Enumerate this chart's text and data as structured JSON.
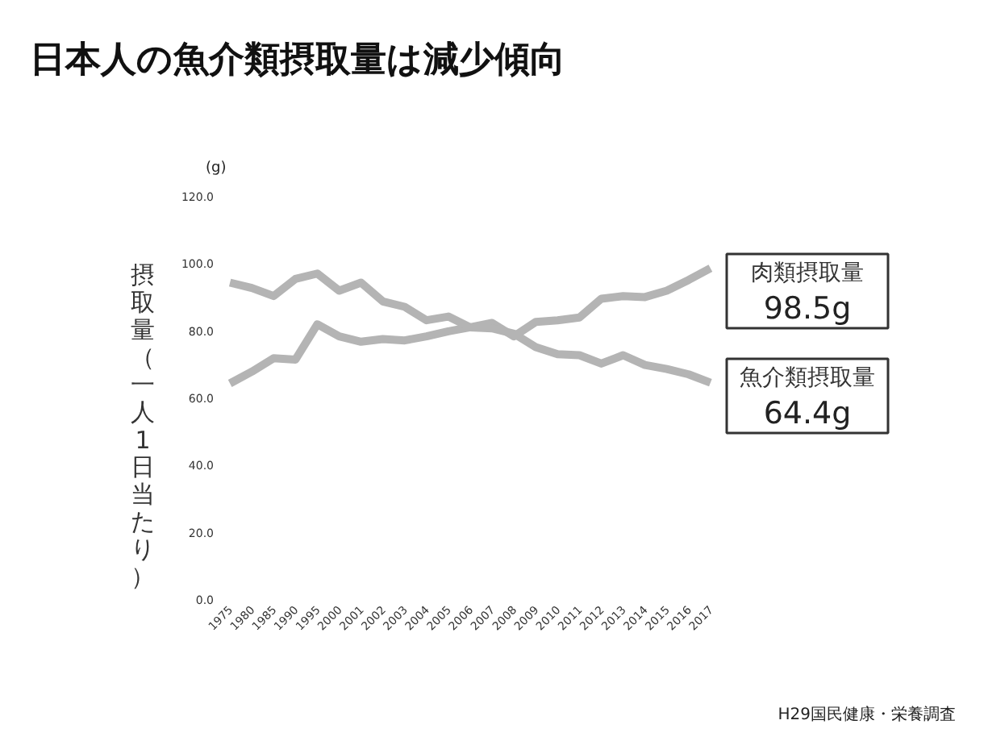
{
  "chart_data": {
    "type": "line",
    "title": "日本人の魚介類摂取量は減少傾向",
    "ylabel": "摂取量（一人1日当たり）",
    "annotations": [
      "(g)",
      "H29国民健康・栄養調査"
    ],
    "categories": [
      "1975",
      "1980",
      "1985",
      "1990",
      "1995",
      "2000",
      "2001",
      "2002",
      "2003",
      "2004",
      "2005",
      "2006",
      "2007",
      "2008",
      "2009",
      "2010",
      "2011",
      "2012",
      "2013",
      "2014",
      "2015",
      "2016",
      "2017"
    ],
    "ylim": [
      0,
      120
    ],
    "yticks": [
      {
        "value": 0,
        "label": "0.0"
      },
      {
        "value": 20,
        "label": "20.0"
      },
      {
        "value": 40,
        "label": "40.0"
      },
      {
        "value": 60,
        "label": "60.0"
      },
      {
        "value": 80,
        "label": "80.0"
      },
      {
        "value": 100,
        "label": "100.0"
      },
      {
        "value": 120,
        "label": "120.0"
      }
    ],
    "grid": false,
    "marker": "none",
    "line_style": "solid",
    "series": [
      {
        "name": "肉類摂取量",
        "color": "#b4b4b4",
        "values": [
          64.2,
          67.7,
          71.7,
          71.3,
          81.8,
          78.2,
          76.6,
          77.4,
          77.0,
          78.2,
          79.7,
          80.9,
          82.2,
          78.2,
          82.5,
          83.0,
          83.8,
          89.4,
          90.2,
          89.9,
          91.8,
          95.0,
          98.5
        ],
        "value_labels": [
          null,
          null,
          null,
          null,
          null,
          null,
          null,
          null,
          null,
          null,
          null,
          null,
          null,
          null,
          null,
          null,
          null,
          null,
          null,
          null,
          null,
          null,
          "98.5g"
        ]
      },
      {
        "name": "魚介類摂取量",
        "color": "#b4b4b4",
        "values": [
          94.2,
          92.6,
          90.2,
          95.3,
          96.9,
          91.8,
          94.2,
          88.6,
          87.0,
          83.0,
          84.1,
          80.9,
          80.6,
          79.0,
          75.0,
          72.9,
          72.6,
          70.1,
          72.6,
          69.7,
          68.5,
          66.9,
          64.4
        ],
        "value_labels": [
          null,
          null,
          null,
          null,
          null,
          null,
          null,
          null,
          null,
          null,
          null,
          null,
          null,
          null,
          null,
          null,
          null,
          null,
          null,
          null,
          null,
          null,
          "64.4g"
        ]
      }
    ]
  }
}
